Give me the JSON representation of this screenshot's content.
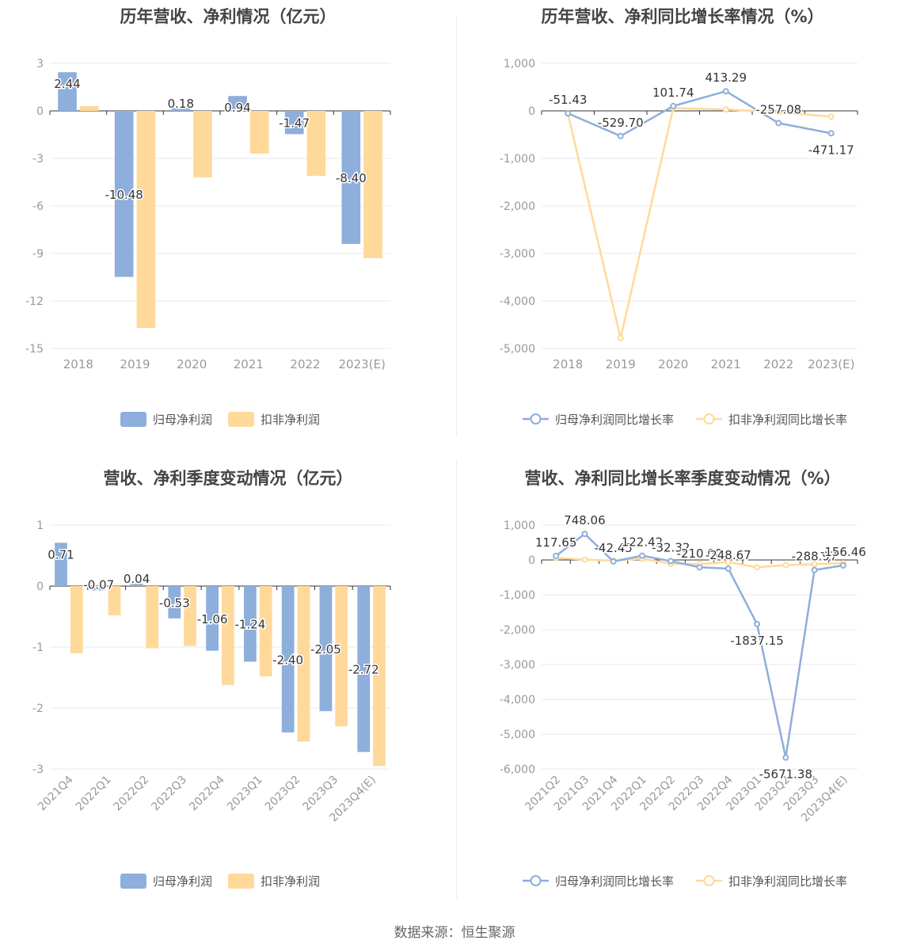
{
  "colors": {
    "series1": "#8eaedb",
    "series2": "#ffd99a",
    "axis": "#333333",
    "grid": "#e8e8f0",
    "tick": "#999999",
    "label": "#333333"
  },
  "source": "数据来源：恒生聚源",
  "chart_data": [
    {
      "type": "bar",
      "title": "历年营收、净利情况（亿元）",
      "categories": [
        "2018",
        "2019",
        "2020",
        "2021",
        "2022",
        "2023(E)"
      ],
      "ylim": [
        -15,
        3
      ],
      "yticks": [
        3,
        0,
        -3,
        -6,
        -9,
        -12,
        -15
      ],
      "ytick_labels": [
        "3",
        "0",
        "-3",
        "-6",
        "-9",
        "-12",
        "-15"
      ],
      "series": [
        {
          "name": "归母净利润",
          "values": [
            2.44,
            -10.48,
            0.18,
            0.94,
            -1.47,
            -8.4
          ],
          "labels": [
            "2.44",
            "-10.48",
            "0.18",
            "0.94",
            "-1.47",
            "-8.40"
          ]
        },
        {
          "name": "扣非净利润",
          "values": [
            0.3,
            -13.7,
            -4.2,
            -2.7,
            -4.1,
            -9.3
          ]
        }
      ]
    },
    {
      "type": "line",
      "title": "历年营收、净利同比增长率情况（%）",
      "categories": [
        "2018",
        "2019",
        "2020",
        "2021",
        "2022",
        "2023(E)"
      ],
      "ylim": [
        -5000,
        1000
      ],
      "yticks": [
        1000,
        0,
        -1000,
        -2000,
        -3000,
        -4000,
        -5000
      ],
      "ytick_labels": [
        "1,000",
        "0",
        "-1,000",
        "-2,000",
        "-3,000",
        "-4,000",
        "-5,000"
      ],
      "series": [
        {
          "name": "归母净利润同比增长率",
          "values": [
            -51.43,
            -529.7,
            101.74,
            413.29,
            -257.08,
            -471.17
          ],
          "labels": [
            "-51.43",
            "-529.70",
            "101.74",
            "413.29",
            "-257.08",
            "-471.17"
          ]
        },
        {
          "name": "扣非净利润同比增长率",
          "values": [
            -60,
            -4780,
            60,
            30,
            -30,
            -120
          ]
        }
      ]
    },
    {
      "type": "bar",
      "title": "营收、净利季度变动情况（亿元）",
      "categories": [
        "2021Q4",
        "2022Q1",
        "2022Q2",
        "2022Q3",
        "2022Q4",
        "2023Q1",
        "2023Q2",
        "2023Q3",
        "2023Q4(E)"
      ],
      "ylim": [
        -3,
        1
      ],
      "yticks": [
        1,
        0,
        -1,
        -2,
        -3
      ],
      "ytick_labels": [
        "1",
        "0",
        "-1",
        "-2",
        "-3"
      ],
      "series": [
        {
          "name": "归母净利润",
          "values": [
            0.71,
            -0.07,
            0.04,
            -0.53,
            -1.06,
            -1.24,
            -2.4,
            -2.05,
            -2.72
          ],
          "labels": [
            "0.71",
            "-0.07",
            "0.04",
            "-0.53",
            "-1.06",
            "-1.24",
            "-2.40",
            "-2.05",
            "-2.72"
          ]
        },
        {
          "name": "扣非净利润",
          "values": [
            -1.1,
            -0.48,
            -1.02,
            -0.98,
            -1.62,
            -1.48,
            -2.55,
            -2.3,
            -2.95
          ]
        }
      ]
    },
    {
      "type": "line",
      "title": "营收、净利同比增长率季度变动情况（%）",
      "categories": [
        "2021Q2",
        "2021Q3",
        "2021Q4",
        "2022Q1",
        "2022Q2",
        "2022Q3",
        "2022Q4",
        "2023Q1",
        "2023Q2",
        "2023Q3",
        "2023Q4(E)"
      ],
      "ylim": [
        -6000,
        1000
      ],
      "yticks": [
        1000,
        0,
        -1000,
        -2000,
        -3000,
        -4000,
        -5000,
        -6000
      ],
      "ytick_labels": [
        "1,000",
        "0",
        "-1,000",
        "-2,000",
        "-3,000",
        "-4,000",
        "-5,000",
        "-6,000"
      ],
      "series": [
        {
          "name": "归母净利润同比增长率",
          "values": [
            117.65,
            748.06,
            -42.45,
            122.42,
            -32.32,
            -210.0,
            -248.67,
            -1837.15,
            -5671.38,
            -288.97,
            -156.46
          ],
          "labels": [
            "117.65",
            "748.06",
            "-42.45",
            "122.42",
            "-32.32",
            "-210.00",
            "-248.67",
            "-1837.15",
            "-5671.38",
            "-288.97",
            "-156.46"
          ]
        },
        {
          "name": "扣非净利润同比增长率",
          "values": [
            60,
            10,
            -20,
            40,
            -110,
            -120,
            -60,
            -210,
            -150,
            -120,
            -90
          ]
        }
      ]
    }
  ]
}
